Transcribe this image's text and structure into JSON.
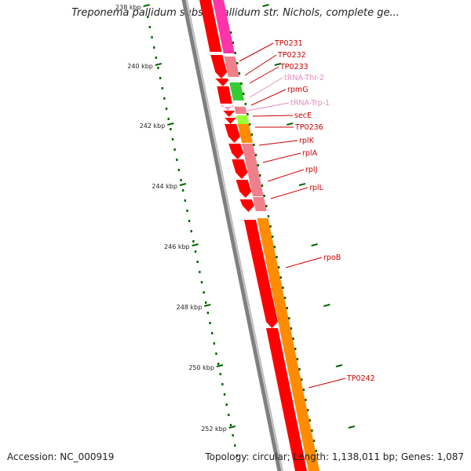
{
  "title": "Treponema pallidum subsp. pallidum str. Nichols, complete ge...",
  "footer": {
    "accession": "Accession: NC_000919",
    "summary": "Topology: circular; Length: 1,138,011 bp; Genes: 1,087"
  },
  "kbp_labels": [
    "238 kbp",
    "240 kbp",
    "242 kbp",
    "244 kbp",
    "246 kbp",
    "248 kbp",
    "250 kbp",
    "252 kbp"
  ],
  "gene_labels": [
    {
      "text": "TP0231",
      "kind": "cds"
    },
    {
      "text": "TP0232",
      "kind": "cds"
    },
    {
      "text": "TP0233",
      "kind": "cds"
    },
    {
      "text": "tRNA-Thr-2",
      "kind": "trna"
    },
    {
      "text": "rpmG",
      "kind": "cds"
    },
    {
      "text": "tRNA-Trp-1",
      "kind": "trna"
    },
    {
      "text": "secE",
      "kind": "cds"
    },
    {
      "text": "TP0236",
      "kind": "cds"
    },
    {
      "text": "rplK",
      "kind": "cds"
    },
    {
      "text": "rplA",
      "kind": "cds"
    },
    {
      "text": "rplJ",
      "kind": "cds"
    },
    {
      "text": "rplL",
      "kind": "cds"
    },
    {
      "text": "rpoB",
      "kind": "cds"
    },
    {
      "text": "TP0242",
      "kind": "cds"
    }
  ],
  "colors": {
    "cds_label": "#cc0000",
    "trna_label": "#e88ac0",
    "backbone": "#808080",
    "gene_forward": "#ff0000",
    "cog_pink": "#f07f8c",
    "cog_magenta": "#ff33aa",
    "cog_orange": "#ff8c00",
    "cog_green": "#33cc33",
    "cog_lime": "#99ff33",
    "tick": "#006600"
  }
}
